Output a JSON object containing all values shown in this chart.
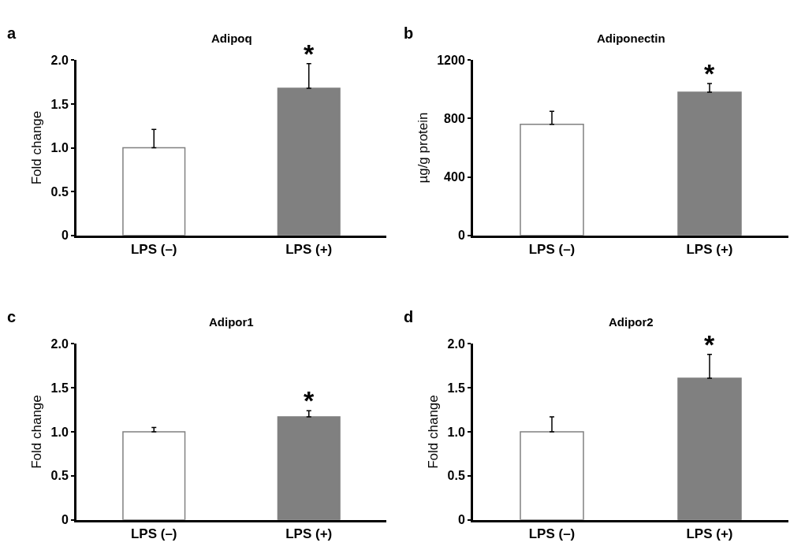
{
  "chart_data": [
    {
      "type": "bar",
      "title": "Adipoq",
      "ylabel": "Fold change",
      "categories": [
        "LPS (–)",
        "LPS (+)"
      ],
      "values": [
        1.0,
        1.68
      ],
      "errors": [
        0.21,
        0.28
      ],
      "colors": [
        "#ffffff",
        "#808080"
      ],
      "ylim": [
        0,
        2
      ],
      "yticks": [
        0,
        {
          "value": 0.5,
          "label": "0.5"
        },
        {
          "value": 1,
          "label": "1.0"
        },
        {
          "value": 1.5,
          "label": "1.5"
        },
        {
          "value": 2,
          "label": "2.0"
        }
      ],
      "annotations": [
        "a",
        {
          "text": "*",
          "x": "LPS (+)",
          "y": 1.96
        }
      ]
    },
    {
      "type": "bar",
      "title": "Adiponectin",
      "ylabel": "µg/g protein",
      "categories": [
        "LPS (–)",
        "LPS (+)"
      ],
      "values": [
        760,
        980
      ],
      "errors": [
        90,
        60
      ],
      "colors": [
        "#ffffff",
        "#808080"
      ],
      "ylim": [
        0,
        1200
      ],
      "yticks": [
        0,
        400,
        800,
        1200
      ],
      "annotations": [
        "b",
        {
          "text": "*",
          "x": "LPS (+)",
          "y": 1040
        }
      ]
    },
    {
      "type": "bar",
      "title": "Adipor1",
      "ylabel": "Fold change",
      "categories": [
        "LPS (–)",
        "LPS (+)"
      ],
      "values": [
        1.0,
        1.17
      ],
      "errors": [
        0.05,
        0.07
      ],
      "colors": [
        "#ffffff",
        "#808080"
      ],
      "ylim": [
        0,
        2
      ],
      "yticks": [
        0,
        {
          "value": 0.5,
          "label": "0.5"
        },
        {
          "value": 1,
          "label": "1.0"
        },
        {
          "value": 1.5,
          "label": "1.5"
        },
        {
          "value": 2,
          "label": "2.0"
        }
      ],
      "annotations": [
        "c",
        {
          "text": "*",
          "x": "LPS (+)",
          "y": 1.24
        }
      ]
    },
    {
      "type": "bar",
      "title": "Adipor2",
      "ylabel": "Fold change",
      "categories": [
        "LPS (–)",
        "LPS (+)"
      ],
      "values": [
        1.0,
        1.61
      ],
      "errors": [
        0.17,
        0.27
      ],
      "colors": [
        "#ffffff",
        "#808080"
      ],
      "ylim": [
        0,
        2
      ],
      "yticks": [
        0,
        {
          "value": 0.5,
          "label": "0.5"
        },
        {
          "value": 1,
          "label": "1.0"
        },
        {
          "value": 1.5,
          "label": "1.5"
        },
        {
          "value": 2,
          "label": "2.0"
        }
      ],
      "annotations": [
        "d",
        {
          "text": "*",
          "x": "LPS (+)",
          "y": 1.88
        }
      ]
    }
  ]
}
